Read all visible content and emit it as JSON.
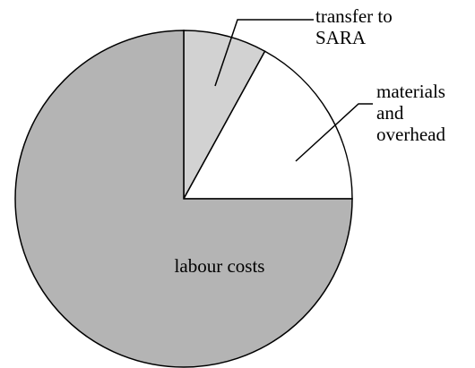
{
  "chart_data": {
    "type": "pie",
    "categories": [
      "transfer to SARA",
      "materials and overhead",
      "labour costs"
    ],
    "values": [
      8,
      17,
      75
    ],
    "colors": [
      "#d2d2d2",
      "#ffffff",
      "#b4b4b4"
    ]
  }
}
